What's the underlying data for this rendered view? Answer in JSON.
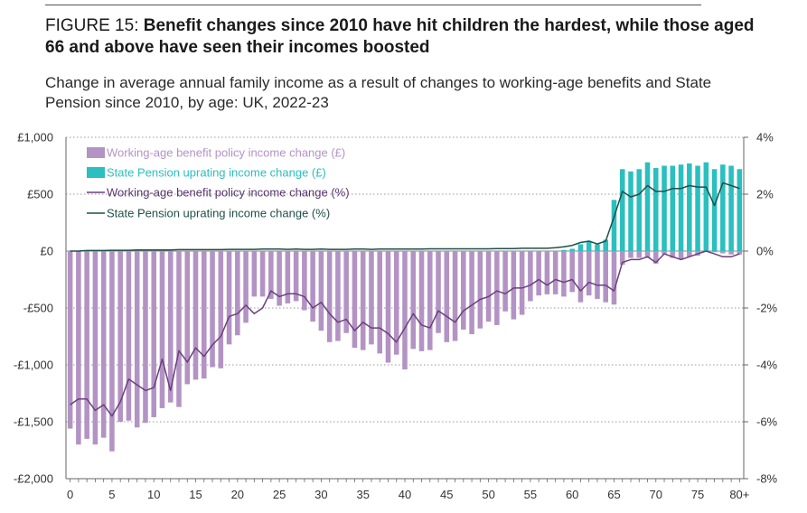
{
  "header": {
    "figure_label": "FIGURE 15: ",
    "headline": "Benefit changes since 2010 have hit children the hardest, while those aged 66 and above have seen their incomes boosted",
    "subtitle": "Change in average annual family income as a result of changes to working-age benefits and State Pension since 2010, by age: UK, 2022-23"
  },
  "colors": {
    "wab_bar": "#b393c4",
    "sp_bar": "#2bbfbf",
    "wab_line": "#6b3f7e",
    "sp_line": "#1f4f4a",
    "grid": "#9a9a9a",
    "axis": "#666666"
  },
  "chart_data": {
    "type": "bar",
    "title": "Change in average annual family income as a result of changes to working-age benefits and State Pension since 2010, by age: UK, 2022-23",
    "xlabel": "",
    "ylabel": "",
    "ylim": [
      -2000,
      1000
    ],
    "y2lim": [
      -8,
      4
    ],
    "yticks": [
      {
        "value": 1000,
        "label": "£1,000"
      },
      {
        "value": 500,
        "label": "£500"
      },
      {
        "value": 0,
        "label": "£0"
      },
      {
        "value": -500,
        "label": "-£500"
      },
      {
        "value": -1000,
        "label": "-£1,000"
      },
      {
        "value": -1500,
        "label": "-£1,500"
      },
      {
        "value": -2000,
        "label": "-£2,000"
      }
    ],
    "y2ticks": [
      {
        "value": 4,
        "label": "4%"
      },
      {
        "value": 2,
        "label": "2%"
      },
      {
        "value": 0,
        "label": "0%"
      },
      {
        "value": -2,
        "label": "-2%"
      },
      {
        "value": -4,
        "label": "-4%"
      },
      {
        "value": -6,
        "label": "-6%"
      },
      {
        "value": -8,
        "label": "-8%"
      }
    ],
    "xticks": [
      {
        "age": 0,
        "label": "0"
      },
      {
        "age": 5,
        "label": "5"
      },
      {
        "age": 10,
        "label": "10"
      },
      {
        "age": 15,
        "label": "15"
      },
      {
        "age": 20,
        "label": "20"
      },
      {
        "age": 25,
        "label": "25"
      },
      {
        "age": 30,
        "label": "30"
      },
      {
        "age": 35,
        "label": "35"
      },
      {
        "age": 40,
        "label": "40"
      },
      {
        "age": 45,
        "label": "45"
      },
      {
        "age": 50,
        "label": "50"
      },
      {
        "age": 55,
        "label": "55"
      },
      {
        "age": 60,
        "label": "60"
      },
      {
        "age": 65,
        "label": "65"
      },
      {
        "age": 70,
        "label": "70"
      },
      {
        "age": 75,
        "label": "75"
      },
      {
        "age": 80,
        "label": "80+"
      }
    ],
    "ages": [
      0,
      1,
      2,
      3,
      4,
      5,
      6,
      7,
      8,
      9,
      10,
      11,
      12,
      13,
      14,
      15,
      16,
      17,
      18,
      19,
      20,
      21,
      22,
      23,
      24,
      25,
      26,
      27,
      28,
      29,
      30,
      31,
      32,
      33,
      34,
      35,
      36,
      37,
      38,
      39,
      40,
      41,
      42,
      43,
      44,
      45,
      46,
      47,
      48,
      49,
      50,
      51,
      52,
      53,
      54,
      55,
      56,
      57,
      58,
      59,
      60,
      61,
      62,
      63,
      64,
      65,
      66,
      67,
      68,
      69,
      70,
      71,
      72,
      73,
      74,
      75,
      76,
      77,
      78,
      79,
      80
    ],
    "legend": [
      {
        "key": "wab_gbp",
        "label": "Working-age benefit policy income change (£)",
        "kind": "bar"
      },
      {
        "key": "sp_gbp",
        "label": "State Pension uprating income change (£)",
        "kind": "bar"
      },
      {
        "key": "wab_pct",
        "label": "Working-age benefit policy income change (%)",
        "kind": "line"
      },
      {
        "key": "sp_pct",
        "label": "State Pension uprating income change (%)",
        "kind": "line"
      }
    ],
    "series": [
      {
        "name": "Working-age benefit policy income change (£)",
        "key": "wab_gbp",
        "axis": "left",
        "values": [
          -1560,
          -1700,
          -1650,
          -1700,
          -1640,
          -1760,
          -1500,
          -1490,
          -1550,
          -1510,
          -1460,
          -1380,
          -1330,
          -1370,
          -1170,
          -1130,
          -1120,
          -1020,
          -1030,
          -820,
          -740,
          -630,
          -400,
          -400,
          -420,
          -480,
          -460,
          -440,
          -520,
          -620,
          -700,
          -800,
          -790,
          -720,
          -850,
          -870,
          -820,
          -900,
          -980,
          -910,
          -1040,
          -860,
          -880,
          -870,
          -720,
          -800,
          -790,
          -690,
          -730,
          -680,
          -620,
          -650,
          -530,
          -600,
          -560,
          -440,
          -390,
          -380,
          -380,
          -400,
          -360,
          -450,
          -390,
          -420,
          -450,
          -470,
          -120,
          -60,
          -60,
          -60,
          -110,
          -30,
          -60,
          -70,
          -50,
          -40,
          0,
          -10,
          -20,
          -30,
          -30
        ]
      },
      {
        "name": "State Pension uprating income change (£)",
        "key": "sp_gbp",
        "axis": "left",
        "values": [
          0,
          0,
          0,
          0,
          0,
          0,
          0,
          0,
          0,
          0,
          0,
          0,
          0,
          0,
          0,
          0,
          0,
          0,
          0,
          0,
          0,
          0,
          0,
          0,
          0,
          0,
          0,
          0,
          0,
          0,
          0,
          0,
          0,
          0,
          0,
          0,
          0,
          0,
          0,
          0,
          0,
          0,
          0,
          0,
          0,
          0,
          0,
          0,
          0,
          0,
          0,
          0,
          0,
          0,
          0,
          0,
          0,
          0,
          0,
          10,
          20,
          60,
          90,
          60,
          100,
          450,
          720,
          700,
          720,
          780,
          730,
          750,
          750,
          760,
          770,
          750,
          780,
          720,
          760,
          750,
          720
        ]
      },
      {
        "name": "Working-age benefit policy income change (%)",
        "key": "wab_pct",
        "axis": "right",
        "values": [
          -5.4,
          -5.2,
          -5.2,
          -5.6,
          -5.4,
          -5.8,
          -5.3,
          -4.5,
          -4.7,
          -4.9,
          -4.8,
          -3.8,
          -4.9,
          -3.5,
          -3.9,
          -3.4,
          -3.7,
          -3.3,
          -3.0,
          -2.3,
          -2.2,
          -1.9,
          -2.2,
          -2.0,
          -1.4,
          -1.6,
          -1.5,
          -1.5,
          -1.6,
          -2.0,
          -1.8,
          -2.2,
          -2.5,
          -2.4,
          -2.8,
          -2.5,
          -2.7,
          -2.7,
          -2.9,
          -3.2,
          -2.7,
          -2.2,
          -2.6,
          -2.7,
          -2.1,
          -2.3,
          -2.5,
          -2.1,
          -1.9,
          -1.7,
          -1.6,
          -1.4,
          -1.5,
          -1.3,
          -1.3,
          -1.2,
          -1.0,
          -1.2,
          -1.0,
          -1.1,
          -1.0,
          -1.4,
          -1.1,
          -1.2,
          -1.2,
          -1.4,
          -0.4,
          -0.3,
          -0.3,
          -0.2,
          -0.4,
          -0.1,
          -0.2,
          -0.3,
          -0.2,
          -0.1,
          0.0,
          -0.1,
          -0.2,
          -0.2,
          -0.1
        ]
      },
      {
        "name": "State Pension uprating income change (%)",
        "key": "sp_pct",
        "axis": "right",
        "values": [
          0.0,
          0.0,
          0.02,
          0.02,
          0.02,
          0.03,
          0.03,
          0.03,
          0.04,
          0.04,
          0.04,
          0.04,
          0.04,
          0.05,
          0.05,
          0.05,
          0.05,
          0.05,
          0.05,
          0.06,
          0.06,
          0.06,
          0.06,
          0.07,
          0.07,
          0.07,
          0.06,
          0.07,
          0.06,
          0.06,
          0.07,
          0.06,
          0.06,
          0.06,
          0.07,
          0.07,
          0.06,
          0.07,
          0.07,
          0.07,
          0.07,
          0.07,
          0.07,
          0.08,
          0.08,
          0.08,
          0.08,
          0.08,
          0.08,
          0.08,
          0.08,
          0.09,
          0.09,
          0.09,
          0.1,
          0.1,
          0.1,
          0.1,
          0.12,
          0.15,
          0.2,
          0.3,
          0.35,
          0.25,
          0.35,
          1.2,
          2.1,
          1.9,
          2.0,
          2.3,
          2.1,
          2.1,
          2.2,
          2.2,
          2.3,
          2.25,
          2.25,
          1.6,
          2.4,
          2.3,
          2.2
        ]
      }
    ]
  }
}
